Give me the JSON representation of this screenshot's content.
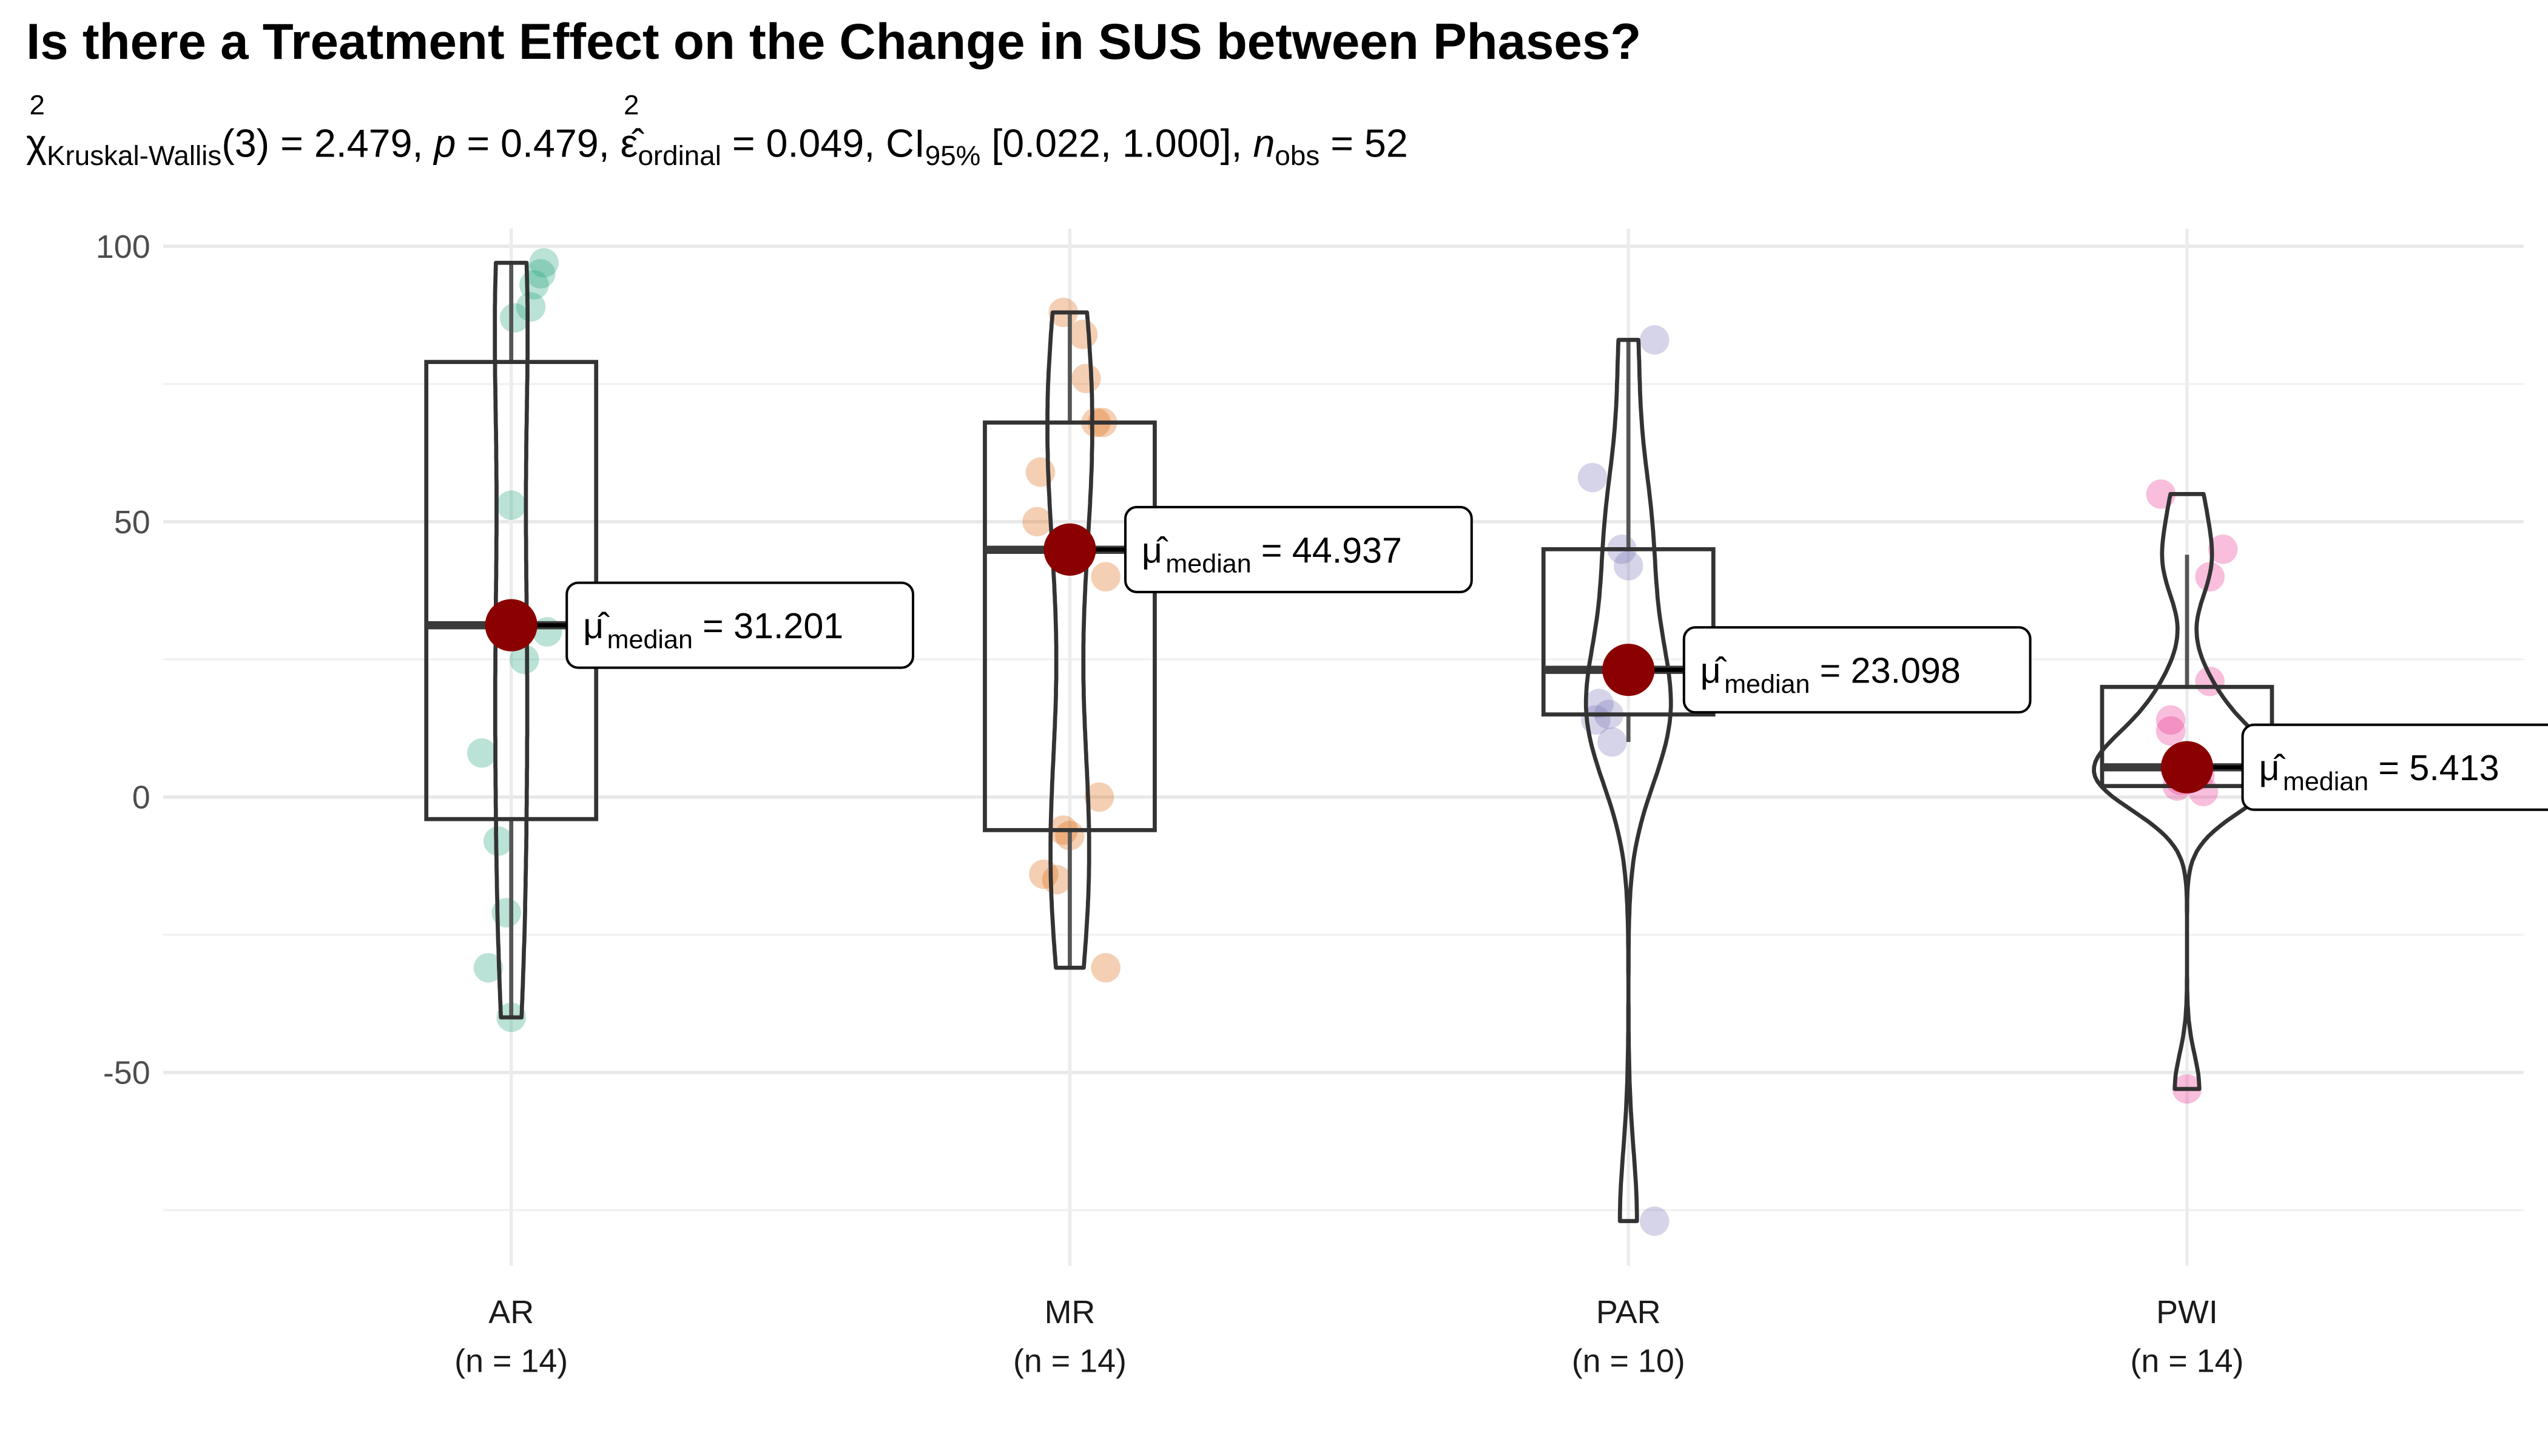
{
  "title": "Is there a Treatment Effect on the Change in SUS between Phases?",
  "subtitle": {
    "stat_symbol": "χ",
    "stat_sup": "2",
    "stat_sub": "Kruskal-Wallis",
    "stat_value": "(3) = 2.479, ",
    "p_label": "p",
    "p_value": " = 0.479, ",
    "eff_symbol": "ε̂",
    "eff_sup": "2",
    "eff_sub": "ordinal",
    "eff_value": " = 0.049, ",
    "ci_label": "CI",
    "ci_sub": "95%",
    "ci_value": " [0.022, 1.000], ",
    "n_label": "n",
    "n_sub": "obs",
    "n_value": " = 52"
  },
  "chart_data": {
    "type": "violin-box-scatter",
    "title": "Is there a Treatment Effect on the Change in SUS between Phases?",
    "xlabel": "",
    "ylabel": "",
    "ylim": [
      -80,
      102
    ],
    "yticks": [
      100,
      50,
      0,
      -50
    ],
    "grid": true,
    "median_point_color": "#8B0000",
    "label_prefix": "μ̂",
    "label_sub": "median",
    "groups": [
      {
        "name": "AR",
        "n_label": "(n = 14)",
        "color": "#1B9E77",
        "values": [
          97,
          95,
          93,
          89,
          87,
          53,
          31,
          30,
          25,
          8,
          -8,
          -21,
          -31,
          -40
        ],
        "box": {
          "min": -40,
          "q1": -4,
          "median": 31.2,
          "q3": 79,
          "max": 97
        },
        "median": 31.201,
        "median_label": "= 31.201"
      },
      {
        "name": "MR",
        "n_label": "(n = 14)",
        "color": "#D95F02",
        "values": [
          88,
          84,
          76,
          68,
          68,
          59,
          50,
          40,
          0,
          -6,
          -7,
          -14,
          -15,
          -31
        ],
        "box": {
          "min": -31,
          "q1": -6,
          "median": 44.9,
          "q3": 68,
          "max": 88
        },
        "median": 44.937,
        "median_label": "= 44.937"
      },
      {
        "name": "PAR",
        "n_label": "(n = 10)",
        "color": "#7570B3",
        "values": [
          83,
          58,
          45,
          42,
          23,
          17,
          15,
          14,
          10,
          -77
        ],
        "box": {
          "min": 10,
          "q1": 15,
          "median": 23.1,
          "q3": 45,
          "max": 83
        },
        "median": 23.098,
        "median_label": "= 23.098"
      },
      {
        "name": "PWI",
        "n_label": "(n = 14)",
        "color": "#E7298A",
        "values": [
          55,
          45,
          40,
          21,
          14,
          12,
          6,
          5,
          5,
          4,
          3,
          2,
          1,
          -53
        ],
        "box": {
          "min": 2,
          "q1": 2,
          "median": 5.4,
          "q3": 20,
          "max": 44
        },
        "median": 5.413,
        "median_label": "= 5.413"
      }
    ]
  }
}
